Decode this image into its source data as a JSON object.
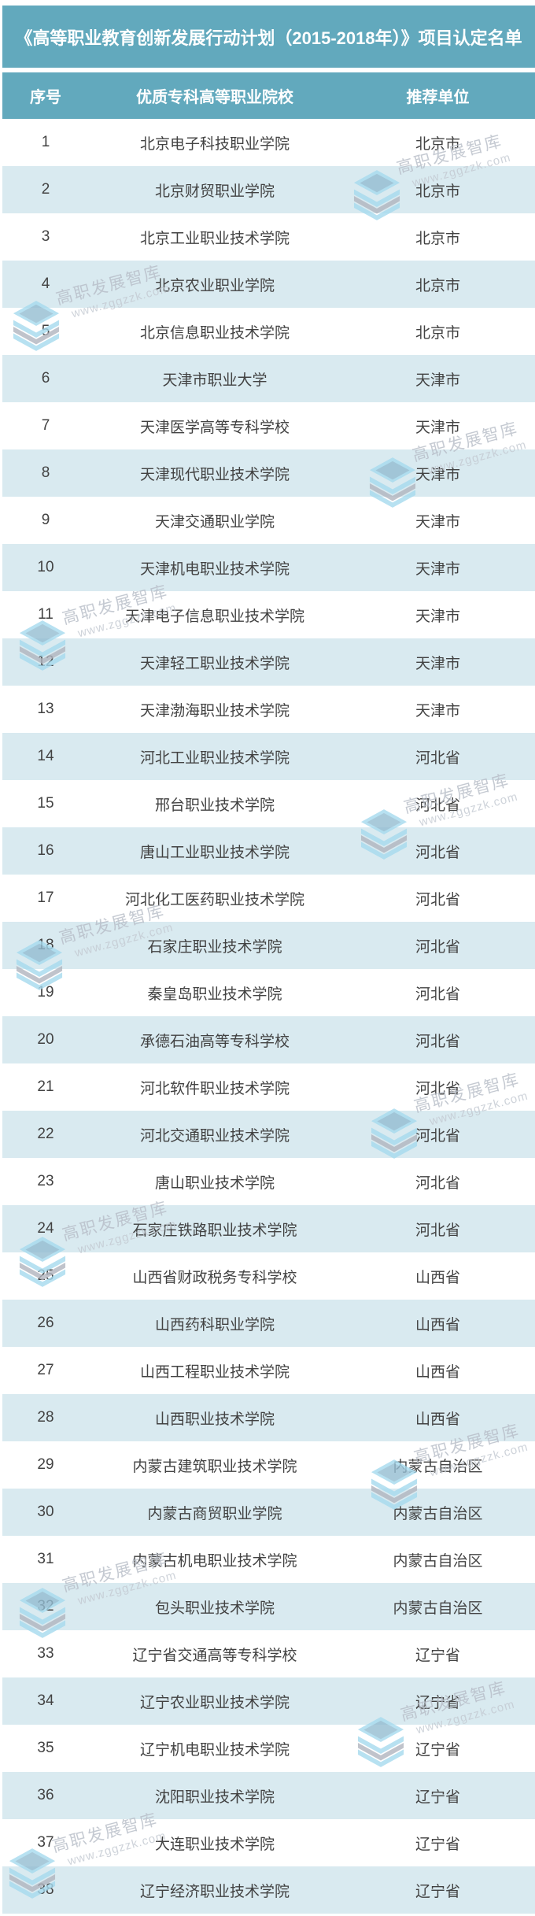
{
  "title": "《高等职业教育创新发展行动计划（2015-2018年）》项目认定名单",
  "table": {
    "columns": [
      "序号",
      "优质专科高等职业院校",
      "推荐单位"
    ],
    "rows": [
      [
        1,
        "北京电子科技职业学院",
        "北京市"
      ],
      [
        2,
        "北京财贸职业学院",
        "北京市"
      ],
      [
        3,
        "北京工业职业技术学院",
        "北京市"
      ],
      [
        4,
        "北京农业职业学院",
        "北京市"
      ],
      [
        5,
        "北京信息职业技术学院",
        "北京市"
      ],
      [
        6,
        "天津市职业大学",
        "天津市"
      ],
      [
        7,
        "天津医学高等专科学校",
        "天津市"
      ],
      [
        8,
        "天津现代职业技术学院",
        "天津市"
      ],
      [
        9,
        "天津交通职业学院",
        "天津市"
      ],
      [
        10,
        "天津机电职业技术学院",
        "天津市"
      ],
      [
        11,
        "天津电子信息职业技术学院",
        "天津市"
      ],
      [
        12,
        "天津轻工职业技术学院",
        "天津市"
      ],
      [
        13,
        "天津渤海职业技术学院",
        "天津市"
      ],
      [
        14,
        "河北工业职业技术学院",
        "河北省"
      ],
      [
        15,
        "邢台职业技术学院",
        "河北省"
      ],
      [
        16,
        "唐山工业职业技术学院",
        "河北省"
      ],
      [
        17,
        "河北化工医药职业技术学院",
        "河北省"
      ],
      [
        18,
        "石家庄职业技术学院",
        "河北省"
      ],
      [
        19,
        "秦皇岛职业技术学院",
        "河北省"
      ],
      [
        20,
        "承德石油高等专科学校",
        "河北省"
      ],
      [
        21,
        "河北软件职业技术学院",
        "河北省"
      ],
      [
        22,
        "河北交通职业技术学院",
        "河北省"
      ],
      [
        23,
        "唐山职业技术学院",
        "河北省"
      ],
      [
        24,
        "石家庄铁路职业技术学院",
        "河北省"
      ],
      [
        25,
        "山西省财政税务专科学校",
        "山西省"
      ],
      [
        26,
        "山西药科职业学院",
        "山西省"
      ],
      [
        27,
        "山西工程职业技术学院",
        "山西省"
      ],
      [
        28,
        "山西职业技术学院",
        "山西省"
      ],
      [
        29,
        "内蒙古建筑职业技术学院",
        "内蒙古自治区"
      ],
      [
        30,
        "内蒙古商贸职业学院",
        "内蒙古自治区"
      ],
      [
        31,
        "内蒙古机电职业技术学院",
        "内蒙古自治区"
      ],
      [
        32,
        "包头职业技术学院",
        "内蒙古自治区"
      ],
      [
        33,
        "辽宁省交通高等专科学校",
        "辽宁省"
      ],
      [
        34,
        "辽宁农业职业技术学院",
        "辽宁省"
      ],
      [
        35,
        "辽宁机电职业技术学院",
        "辽宁省"
      ],
      [
        36,
        "沈阳职业技术学院",
        "辽宁省"
      ],
      [
        37,
        "大连职业技术学院",
        "辽宁省"
      ],
      [
        38,
        "辽宁经济职业技术学院",
        "辽宁省"
      ]
    ]
  },
  "watermark": {
    "brand": "高职发展智库",
    "url": "www.zggzzk.com"
  },
  "colors": {
    "banner_teal": "#62a9bd",
    "row_alt_blue": "#d9eaf0",
    "row_text": "#424242",
    "header_text": "#ffffff",
    "watermark_text": "#b7bdc7",
    "watermark_blue": "#a6daee",
    "watermark_gray": "#b1b5bf"
  }
}
